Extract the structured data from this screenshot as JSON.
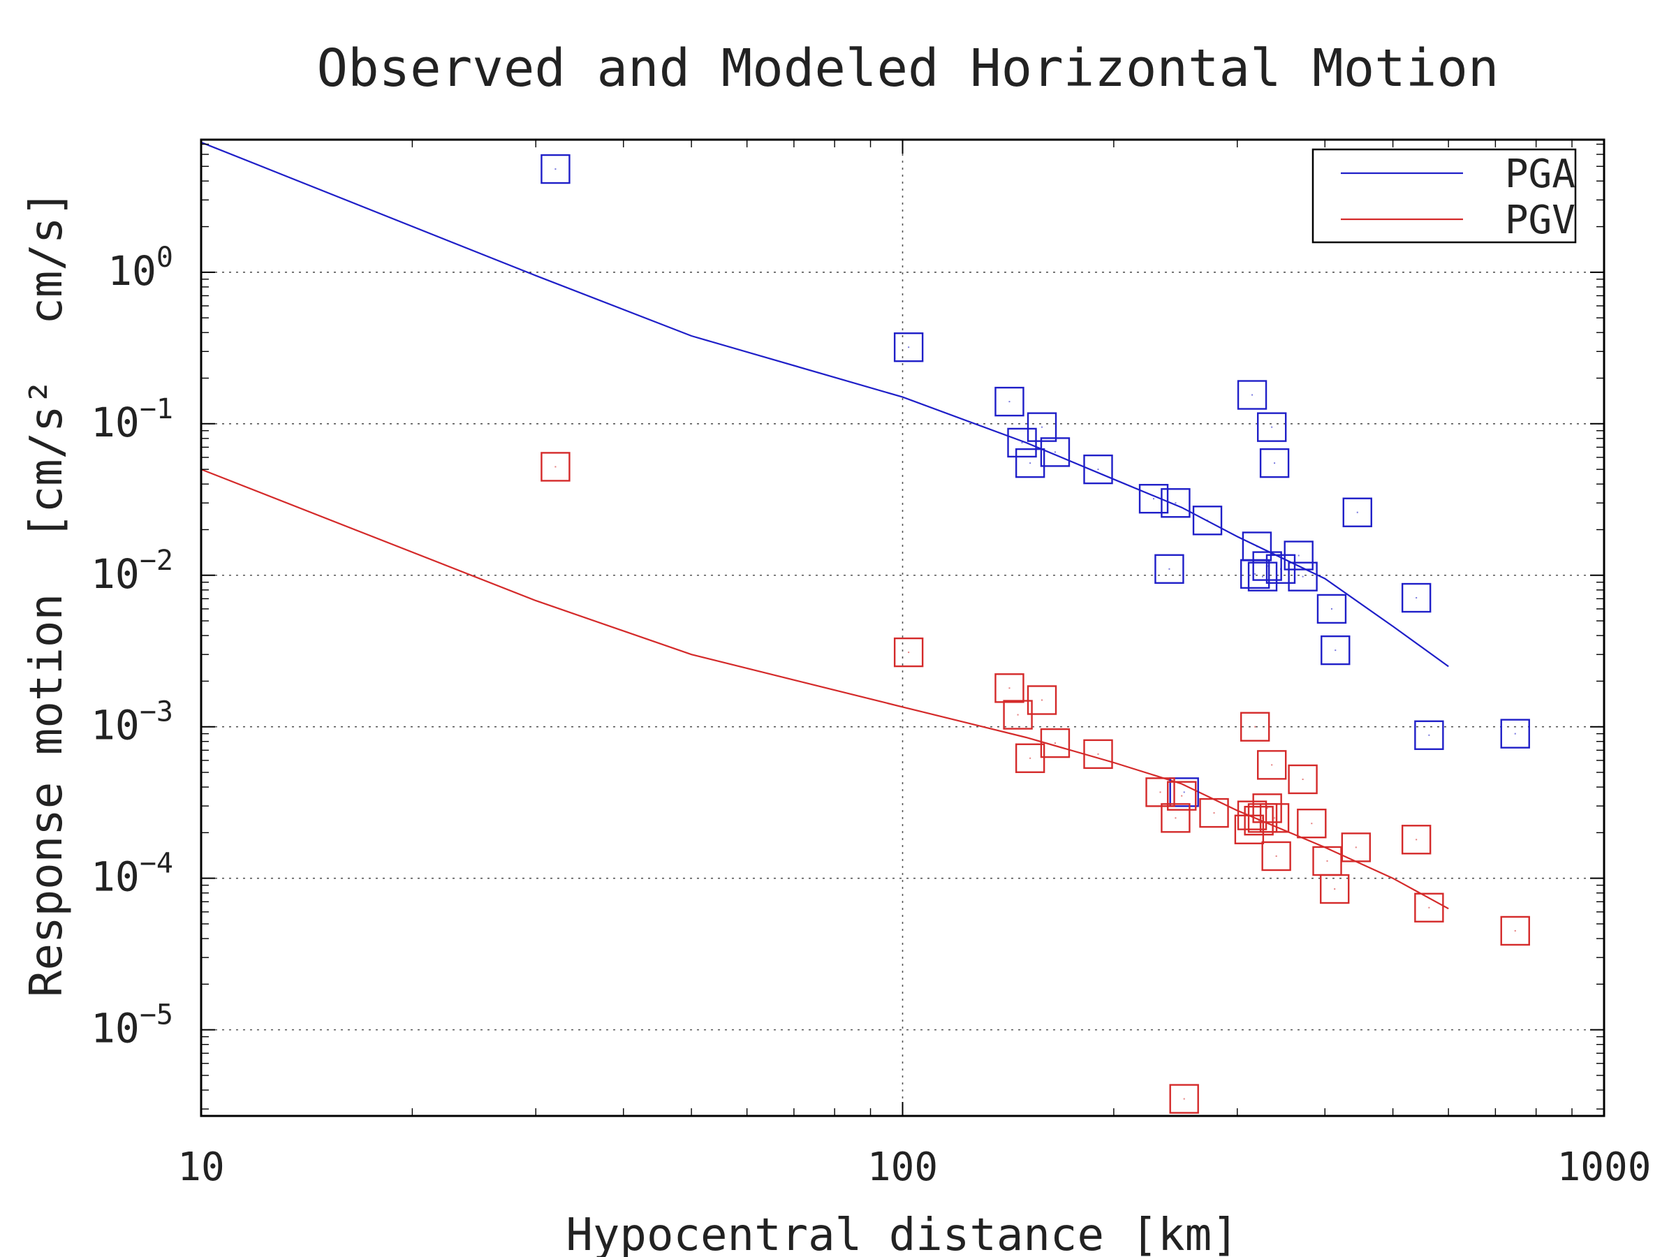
{
  "chart_data": {
    "type": "scatter",
    "title": "Observed and Modeled Horizontal Motion",
    "xlabel": "Hypocentral distance [km]",
    "ylabel": "Response motion  [cm/s²  cm/s]",
    "x_scale": "log",
    "y_scale": "log",
    "xlim": [
      10,
      1000
    ],
    "ylim": [
      2.7e-06,
      7.5
    ],
    "x_ticks": [
      10,
      100,
      1000
    ],
    "x_tick_labels": [
      "10",
      "100",
      "1000"
    ],
    "y_ticks": [
      1,
      0.1,
      0.01,
      0.001,
      0.0001,
      1e-05
    ],
    "y_tick_labels": [
      {
        "base": "10",
        "exp": "0"
      },
      {
        "base": "10",
        "exp": "−1"
      },
      {
        "base": "10",
        "exp": "−2"
      },
      {
        "base": "10",
        "exp": "−3"
      },
      {
        "base": "10",
        "exp": "−4"
      },
      {
        "base": "10",
        "exp": "−5"
      }
    ],
    "grid": true,
    "legend_position": "top-right",
    "legend": [
      {
        "label": "PGA",
        "color": "#1f1fc8"
      },
      {
        "label": "PGV",
        "color": "#d42a2a"
      }
    ],
    "series": [
      {
        "name": "PGA",
        "kind": "model-line",
        "color": "#1f1fc8",
        "x": [
          10,
          30,
          50,
          100,
          150,
          200,
          250,
          300,
          400,
          500,
          600
        ],
        "y": [
          7.2,
          0.95,
          0.38,
          0.15,
          0.075,
          0.043,
          0.028,
          0.018,
          0.0095,
          0.0046,
          0.0025
        ]
      },
      {
        "name": "PGV",
        "kind": "model-line",
        "color": "#d42a2a",
        "x": [
          10,
          30,
          50,
          100,
          150,
          200,
          250,
          300,
          400,
          500,
          600
        ],
        "y": [
          0.05,
          0.0068,
          0.003,
          0.00135,
          0.00085,
          0.00058,
          0.00042,
          0.00028,
          0.00016,
          0.0001,
          6.3e-05
        ]
      },
      {
        "name": "PGA",
        "kind": "observed",
        "color": "#1f1fc8",
        "x": [
          32,
          102,
          142,
          148,
          152,
          158,
          165,
          190,
          228,
          245,
          240,
          272,
          315,
          318,
          320,
          326,
          331,
          336,
          339,
          346,
          367,
          372,
          409,
          414,
          445,
          540,
          563,
          747,
          252
        ],
        "y": [
          4.8,
          0.32,
          0.14,
          0.075,
          0.055,
          0.095,
          0.065,
          0.05,
          0.032,
          0.03,
          0.011,
          0.023,
          0.155,
          0.0102,
          0.0155,
          0.0098,
          0.0115,
          0.095,
          0.055,
          0.011,
          0.0135,
          0.0098,
          0.006,
          0.0032,
          0.026,
          0.0071,
          0.00088,
          0.0009,
          0.00037
        ]
      },
      {
        "name": "PGV",
        "kind": "observed",
        "color": "#d42a2a",
        "x": [
          32,
          102,
          142,
          146,
          152,
          158,
          165,
          190,
          233,
          245,
          250,
          278,
          312,
          315,
          318,
          322,
          326,
          331,
          336,
          339,
          341,
          372,
          383,
          403,
          413,
          443,
          540,
          563,
          747,
          252
        ],
        "y": [
          0.052,
          0.0031,
          0.0018,
          0.0012,
          0.00062,
          0.0015,
          0.00078,
          0.00066,
          0.00037,
          0.00025,
          0.00035,
          0.00027,
          0.00021,
          0.00026,
          0.001,
          0.00024,
          0.00025,
          0.00029,
          0.00056,
          0.00025,
          0.00014,
          0.00045,
          0.00023,
          0.00013,
          8.5e-05,
          0.00016,
          0.00018,
          6.4e-05,
          4.5e-05,
          3.5e-06
        ]
      }
    ]
  }
}
